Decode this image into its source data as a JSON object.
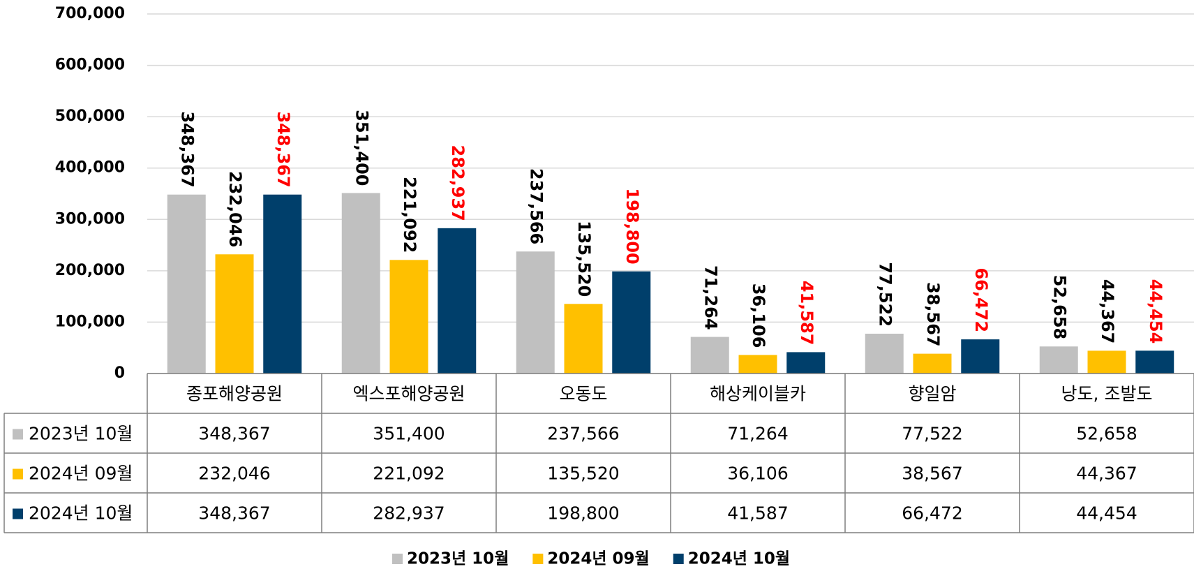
{
  "chart_data": {
    "type": "bar",
    "categories": [
      "종포해양공원",
      "엑스포해양공원",
      "오동도",
      "해상케이블카",
      "향일암",
      "낭도, 조발도"
    ],
    "series": [
      {
        "name": "2023년 10월",
        "color": "#c0c0c0",
        "label_color": "#000000",
        "values": [
          348367,
          351400,
          237566,
          71264,
          77522,
          52658
        ],
        "value_labels": [
          "348,367",
          "351,400",
          "237,566",
          "71,264",
          "77,522",
          "52,658"
        ]
      },
      {
        "name": "2024년 09월",
        "color": "#ffc000",
        "label_color": "#000000",
        "values": [
          232046,
          221092,
          135520,
          36106,
          38567,
          44367
        ],
        "value_labels": [
          "232,046",
          "221,092",
          "135,520",
          "36,106",
          "38,567",
          "44,367"
        ]
      },
      {
        "name": "2024년 10월",
        "color": "#003f6b",
        "label_color": "#ff0000",
        "values": [
          348367,
          282937,
          198800,
          41587,
          66472,
          44454
        ],
        "value_labels": [
          "348,367",
          "282,937",
          "198,800",
          "41,587",
          "66,472",
          "44,454"
        ]
      }
    ],
    "ylim": [
      0,
      700000
    ],
    "yticks": [
      0,
      {
        "value": 100000,
        "label": "100,000"
      },
      {
        "value": 200000,
        "label": "200,000"
      },
      {
        "value": 300000,
        "label": "300,000"
      },
      {
        "value": 400000,
        "label": "400,000"
      },
      {
        "value": 500000,
        "label": "500,000"
      },
      {
        "value": 600000,
        "label": "600,000"
      },
      {
        "value": 700000,
        "label": "700,000"
      }
    ],
    "grid": true,
    "legend": "bottom",
    "data_table": true
  }
}
